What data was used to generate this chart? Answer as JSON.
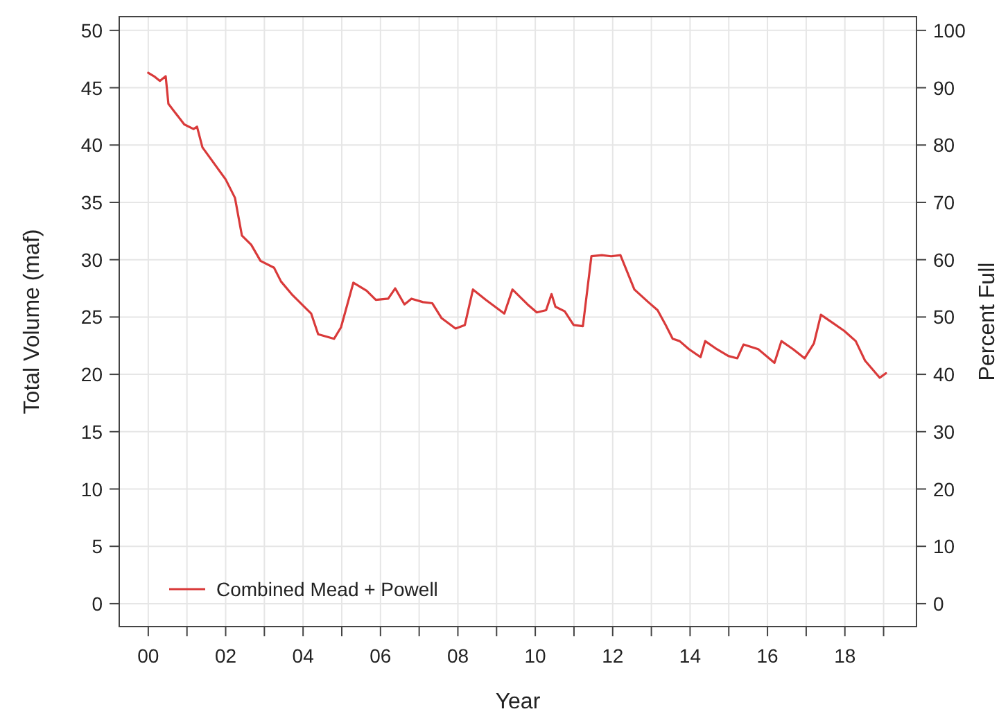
{
  "chart_data": {
    "type": "line",
    "xlabel": "Year",
    "ylabel": "Total Volume (maf)",
    "y2label": "Percent Full",
    "xlim": [
      -0.75,
      19.85
    ],
    "ylim": [
      -2,
      51.2
    ],
    "y2lim": [
      -4,
      102.4
    ],
    "xticks": [
      {
        "value": 0,
        "label": "00"
      },
      {
        "value": 1,
        "label": null
      },
      {
        "value": 2,
        "label": "02"
      },
      {
        "value": 3,
        "label": null
      },
      {
        "value": 4,
        "label": "04"
      },
      {
        "value": 5,
        "label": null
      },
      {
        "value": 6,
        "label": "06"
      },
      {
        "value": 7,
        "label": null
      },
      {
        "value": 8,
        "label": "08"
      },
      {
        "value": 9,
        "label": null
      },
      {
        "value": 10,
        "label": "10"
      },
      {
        "value": 11,
        "label": null
      },
      {
        "value": 12,
        "label": "12"
      },
      {
        "value": 13,
        "label": null
      },
      {
        "value": 14,
        "label": "14"
      },
      {
        "value": 15,
        "label": null
      },
      {
        "value": 16,
        "label": "16"
      },
      {
        "value": 17,
        "label": null
      },
      {
        "value": 18,
        "label": "18"
      },
      {
        "value": 19,
        "label": null
      }
    ],
    "yticks": [
      0,
      5,
      10,
      15,
      20,
      25,
      30,
      35,
      40,
      45,
      50
    ],
    "y2ticks": [
      0,
      10,
      20,
      30,
      40,
      50,
      60,
      70,
      80,
      90,
      100
    ],
    "grid": true,
    "legend": "bottom left",
    "marker": "none",
    "line_style": "solid",
    "series": [
      {
        "name": "Combined Mead + Powell",
        "color": "#d93a3a",
        "x": [
          0,
          0.15,
          0.3,
          0.45,
          0.52,
          0.93,
          1.17,
          1.26,
          1.4,
          2.0,
          2.24,
          2.42,
          2.66,
          2.9,
          3.25,
          3.43,
          3.73,
          4.09,
          4.21,
          4.39,
          4.8,
          4.98,
          5.3,
          5.64,
          5.88,
          6.2,
          6.38,
          6.62,
          6.8,
          7.1,
          7.34,
          7.58,
          7.94,
          8.18,
          8.39,
          8.72,
          9.2,
          9.41,
          9.8,
          10.04,
          10.28,
          10.42,
          10.52,
          10.76,
          10.99,
          11.23,
          11.45,
          11.72,
          11.96,
          12.2,
          12.56,
          12.92,
          13.16,
          13.37,
          13.55,
          13.73,
          13.97,
          14.27,
          14.39,
          14.69,
          14.99,
          15.22,
          15.38,
          15.76,
          16.18,
          16.36,
          16.66,
          16.96,
          17.2,
          17.38,
          17.68,
          17.98,
          18.28,
          18.52,
          18.9,
          19.06
        ],
        "values": [
          46.3,
          46.0,
          45.6,
          46.0,
          43.6,
          41.8,
          41.4,
          41.6,
          39.8,
          37.0,
          35.4,
          32.1,
          31.3,
          29.9,
          29.3,
          28.1,
          26.9,
          25.7,
          25.3,
          23.5,
          23.1,
          24.1,
          28.0,
          27.3,
          26.5,
          26.6,
          27.5,
          26.1,
          26.6,
          26.3,
          26.2,
          24.9,
          24.0,
          24.3,
          27.4,
          26.5,
          25.3,
          27.4,
          26.1,
          25.4,
          25.6,
          27.0,
          25.9,
          25.5,
          24.3,
          24.2,
          30.3,
          30.4,
          30.3,
          30.4,
          27.4,
          26.3,
          25.6,
          24.3,
          23.1,
          22.9,
          22.2,
          21.5,
          22.9,
          22.2,
          21.6,
          21.4,
          22.6,
          22.2,
          21.0,
          22.9,
          22.2,
          21.4,
          22.7,
          25.2,
          24.5,
          23.8,
          22.9,
          21.2,
          19.7,
          20.1
        ]
      }
    ]
  }
}
